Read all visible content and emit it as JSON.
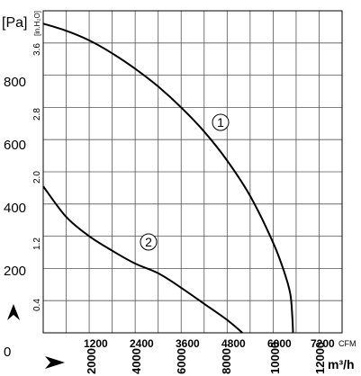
{
  "chart_data": {
    "type": "line",
    "title": "",
    "y_left": {
      "unit": "[Pa]",
      "ticks": [
        0,
        200,
        400,
        600,
        800
      ],
      "range": [
        0,
        1000
      ]
    },
    "y_inner": {
      "unit": "[in.H₂O]",
      "ticks": [
        "0.4",
        "1.2",
        "2.0",
        "2.8",
        "3.6"
      ]
    },
    "x_cfm": {
      "unit": "CFM",
      "ticks": [
        1200,
        2400,
        3600,
        4800,
        6000,
        7200
      ],
      "range": [
        0,
        7800
      ]
    },
    "x_m3h": {
      "unit": "m³/h",
      "ticks": [
        2000,
        4000,
        6000,
        8000,
        10000,
        12000
      ]
    },
    "grid": true,
    "series": [
      {
        "name": "1",
        "x_cfm": [
          0,
          600,
          1200,
          1800,
          2400,
          3000,
          3600,
          4200,
          4800,
          5400,
          6000,
          6300,
          6450,
          6500,
          6520
        ],
        "y_pa": [
          960,
          938,
          908,
          868,
          820,
          765,
          700,
          625,
          535,
          425,
          280,
          185,
          120,
          50,
          0
        ]
      },
      {
        "name": "2",
        "x_cfm": [
          0,
          600,
          1200,
          1800,
          2400,
          3000,
          3600,
          4200,
          4800,
          5200
        ],
        "y_pa": [
          455,
          360,
          300,
          255,
          215,
          185,
          140,
          90,
          40,
          0
        ]
      }
    ],
    "curve_labels": [
      "1",
      "2"
    ]
  }
}
